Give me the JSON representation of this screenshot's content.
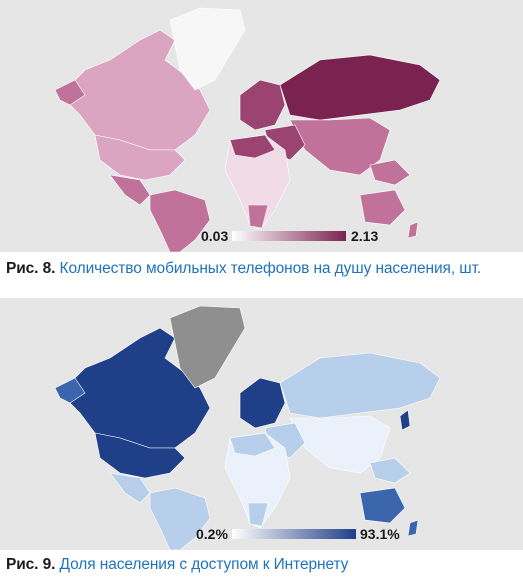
{
  "figures": [
    {
      "caption_label": "Рис. 8.",
      "caption_text": "Количество мобильных телефонов на душу населения, шт.",
      "legend": {
        "min_label": "0.03",
        "max_label": "2.13",
        "color_low": "#ffffff",
        "color_high": "#7a2350"
      },
      "colors": {
        "ocean": "#e6e6e6",
        "greenland": "#f7f7f7",
        "high": "#7a2350",
        "mid_high": "#9b4471",
        "mid": "#c0729b",
        "low": "#dba5c2",
        "very_low": "#f1dbe7"
      }
    },
    {
      "caption_label": "Рис. 9.",
      "caption_text": "Доля населения с доступом к Интернету",
      "legend": {
        "min_label": "0.2%",
        "max_label": "93.1%",
        "color_low": "#ffffff",
        "color_high": "#1f3f88"
      },
      "colors": {
        "ocean": "#e6e6e6",
        "greenland": "#8f8f8f",
        "high": "#1f3f88",
        "mid_high": "#3b66ad",
        "mid": "#7aa2d6",
        "low": "#b8cfec",
        "very_low": "#eaf1fa"
      }
    }
  ]
}
